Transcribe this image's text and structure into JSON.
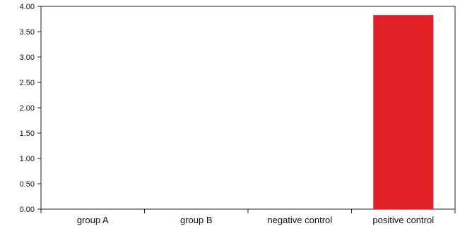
{
  "chart_data": {
    "type": "bar",
    "categories": [
      "group A",
      "group B",
      "negative control",
      "positive control"
    ],
    "values": [
      0,
      0,
      0,
      3.83
    ],
    "yticks": [
      "0.00",
      "0.50",
      "1.00",
      "1.50",
      "2.00",
      "2.50",
      "3.00",
      "3.50",
      "4.00"
    ],
    "ylim": [
      0,
      4
    ],
    "title": "",
    "xlabel": "",
    "ylabel": "",
    "grid": false,
    "bar_color": "#e01f26"
  }
}
